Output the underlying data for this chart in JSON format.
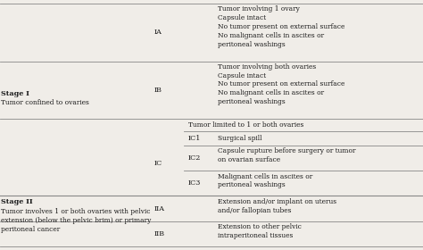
{
  "bg_color": "#f0ede8",
  "text_color": "#1a1a1a",
  "line_color": "#888888",
  "font_size": 5.8,
  "small_font_size": 5.4,
  "col_x": {
    "stage": 0.002,
    "sub": 0.365,
    "ic_sub": 0.445,
    "desc": 0.515
  },
  "sections": {
    "IA": {
      "sub_label": "IA",
      "desc": "Tumor involving 1 ovary\nCapsule intact\nNo tumor present on external surface\nNo malignant cells in ascites or\nperitoneal washings"
    },
    "IB": {
      "sub_label": "IB",
      "desc": "Tumor involving both ovaries\nCapsule intact\nNo tumor present on external surface\nNo malignant cells in ascites or\nperitoneal washings"
    },
    "IC_header": "Tumor limited to 1 or both ovaries",
    "IC_label": "IC",
    "IC1": {
      "sub_label": "IC1",
      "desc": "Surgical spill"
    },
    "IC2": {
      "sub_label": "IC2",
      "desc": "Capsule rupture before surgery or tumor\non ovarian surface"
    },
    "IC3": {
      "sub_label": "IC3",
      "desc": "Malignant cells in ascites or\nperitoneal washings"
    },
    "IIA": {
      "sub_label": "IIA",
      "desc": "Extension and/or implant on uterus\nand/or fallopian tubes"
    },
    "IIB": {
      "sub_label": "IIB",
      "desc": "Extension to other pelvic\nintraperitoneal tissues"
    }
  },
  "stage1_title": "Stage I",
  "stage1_desc": "Tumor confined to ovaries",
  "stage2_title": "Stage II",
  "stage2_desc": "Tumor involves 1 or both ovaries with pelvic\nextension (below the pelvic brim) or primary\nperitoneal cancer"
}
